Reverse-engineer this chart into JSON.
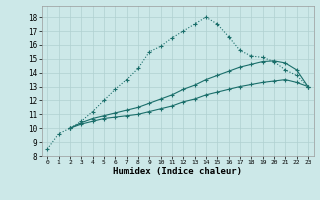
{
  "xlabel": "Humidex (Indice chaleur)",
  "bg_color": "#cce8e8",
  "grid_color": "#b0d0d0",
  "line_color": "#1a6e6a",
  "xlim": [
    -0.5,
    23.5
  ],
  "ylim": [
    8,
    18.8
  ],
  "xticks": [
    0,
    1,
    2,
    3,
    4,
    5,
    6,
    7,
    8,
    9,
    10,
    11,
    12,
    13,
    14,
    15,
    16,
    17,
    18,
    19,
    20,
    21,
    22,
    23
  ],
  "yticks": [
    8,
    9,
    10,
    11,
    12,
    13,
    14,
    15,
    16,
    17,
    18
  ],
  "curve1_x": [
    0,
    1,
    2,
    3,
    4,
    5,
    6,
    7,
    8,
    9,
    10,
    11,
    12,
    13,
    14,
    15,
    16,
    17,
    18,
    19,
    20,
    21,
    22,
    23
  ],
  "curve1_y": [
    8.5,
    9.6,
    10.0,
    10.5,
    11.2,
    12.0,
    12.8,
    13.5,
    14.3,
    15.5,
    15.9,
    16.5,
    17.0,
    17.5,
    18.0,
    17.5,
    16.6,
    15.6,
    15.2,
    15.1,
    14.8,
    14.2,
    13.8,
    13.0
  ],
  "curve2_x": [
    2,
    3,
    4,
    5,
    6,
    7,
    8,
    9,
    10,
    11,
    12,
    13,
    14,
    15,
    16,
    17,
    18,
    19,
    20,
    21,
    22,
    23
  ],
  "curve2_y": [
    10.0,
    10.4,
    10.7,
    10.9,
    11.1,
    11.3,
    11.5,
    11.8,
    12.1,
    12.4,
    12.8,
    13.1,
    13.5,
    13.8,
    14.1,
    14.4,
    14.6,
    14.8,
    14.85,
    14.7,
    14.2,
    13.0
  ],
  "curve3_x": [
    2,
    3,
    4,
    5,
    6,
    7,
    8,
    9,
    10,
    11,
    12,
    13,
    14,
    15,
    16,
    17,
    18,
    19,
    20,
    21,
    22,
    23
  ],
  "curve3_y": [
    10.0,
    10.3,
    10.5,
    10.7,
    10.8,
    10.9,
    11.0,
    11.2,
    11.4,
    11.6,
    11.9,
    12.1,
    12.4,
    12.6,
    12.8,
    13.0,
    13.15,
    13.3,
    13.4,
    13.5,
    13.3,
    13.0
  ]
}
